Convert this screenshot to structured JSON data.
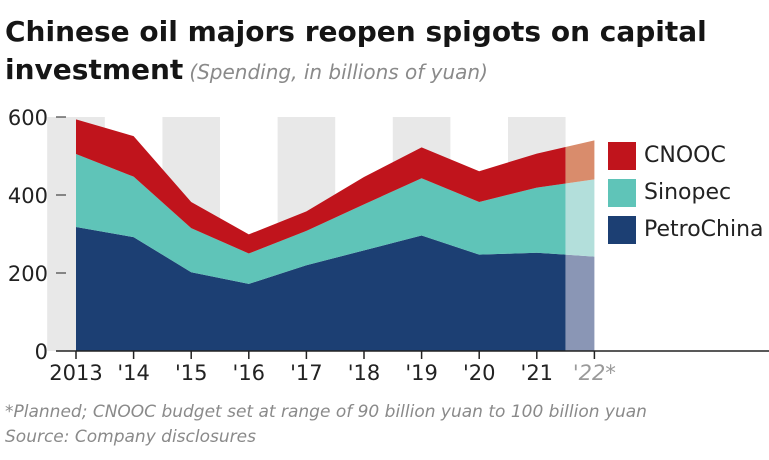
{
  "title_line1": "Chinese oil majors reopen spigots on capital",
  "title_line2": "investment",
  "subtitle": "(Spending, in billions of yuan)",
  "footnote": "*Planned; CNOOC budget set at range of 90 billion yuan to 100 billion yuan",
  "source": "Source: Company disclosures",
  "colors": {
    "petrochina": "#1c3f73",
    "sinopec": "#5fc4b8",
    "cnooc": "#c0141c",
    "band": "#e8e8e8",
    "planned_petrochina": "#8a96b5",
    "planned_sinopec": "#b3dfdb",
    "planned_cnooc": "#d98c6c"
  },
  "chart_data": {
    "type": "area",
    "stacked": true,
    "x": [
      "2013",
      "'14",
      "'15",
      "'16",
      "'17",
      "'18",
      "'19",
      "'20",
      "'21",
      "'22*"
    ],
    "series": [
      {
        "name": "PetroChina",
        "values": [
          318,
          292,
          202,
          172,
          220,
          258,
          296,
          247,
          252,
          242
        ]
      },
      {
        "name": "Sinopec",
        "values": [
          187,
          155,
          113,
          78,
          88,
          118,
          147,
          135,
          167,
          198
        ]
      },
      {
        "name": "CNOOC",
        "values": [
          89,
          104,
          67,
          49,
          50,
          70,
          79,
          79,
          87,
          100
        ]
      }
    ],
    "planned_index": 9,
    "ylim": [
      0,
      600
    ],
    "yticks": [
      0,
      200,
      400,
      600
    ],
    "legend_position": "right",
    "grid": false
  }
}
